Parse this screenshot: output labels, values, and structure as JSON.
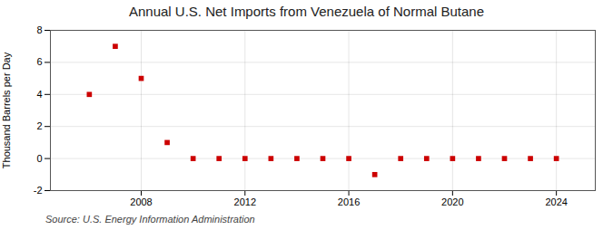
{
  "chart_data": {
    "type": "scatter",
    "title": "Annual U.S. Net Imports from Venezuela of Normal Butane",
    "ylabel": "Thousand Barrels per Day",
    "source": "Source: U.S. Energy Information Administration",
    "x": [
      2006,
      2007,
      2008,
      2009,
      2010,
      2011,
      2012,
      2013,
      2014,
      2015,
      2016,
      2017,
      2018,
      2019,
      2020,
      2021,
      2022,
      2023,
      2024
    ],
    "values": [
      4,
      7,
      5,
      1,
      0,
      0,
      0,
      0,
      0,
      0,
      0,
      -1,
      0,
      0,
      0,
      0,
      0,
      0,
      0
    ],
    "color": "#cc0000",
    "marker": "square",
    "xlim": [
      2004.5,
      2025.5
    ],
    "xticks": [
      2008,
      2012,
      2016,
      2020,
      2024
    ],
    "ylim": [
      -2,
      8
    ],
    "yticks": [
      -2,
      0,
      2,
      4,
      6,
      8
    ],
    "grid": true
  }
}
